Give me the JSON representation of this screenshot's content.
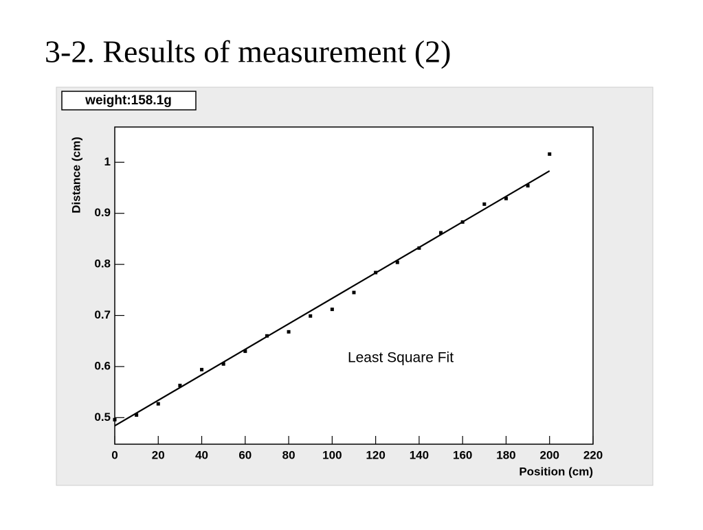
{
  "slide_title": "3-2. Results of measurement (2)",
  "chart_data": {
    "type": "scatter",
    "title": "weight:158.1g",
    "x_label": "Position (cm)",
    "y_label": "Distance (cm)",
    "xlim": [
      0,
      220
    ],
    "ylim": [
      0.448,
      1.069
    ],
    "xticks": [
      0,
      20,
      40,
      60,
      80,
      100,
      120,
      140,
      160,
      180,
      200,
      220
    ],
    "yticks": [
      0.5,
      0.6,
      0.7,
      0.8,
      0.9,
      1
    ],
    "grid": false,
    "series": [
      {
        "color": "#000000",
        "x": [
          0,
          10,
          20,
          30,
          40,
          50,
          60,
          70,
          80,
          90,
          100,
          110,
          120,
          130,
          140,
          150,
          160,
          170,
          180,
          190,
          200
        ],
        "values": [
          0.496,
          0.505,
          0.527,
          0.563,
          0.594,
          0.605,
          0.63,
          0.66,
          0.668,
          0.699,
          0.712,
          0.745,
          0.784,
          0.804,
          0.832,
          0.862,
          0.883,
          0.918,
          0.929,
          0.954,
          1.016
        ]
      },
      {
        "name": "Least Square Fit",
        "color": "#000000",
        "style": "line",
        "x": [
          0,
          200
        ],
        "values": [
          0.484,
          0.983
        ]
      }
    ]
  }
}
